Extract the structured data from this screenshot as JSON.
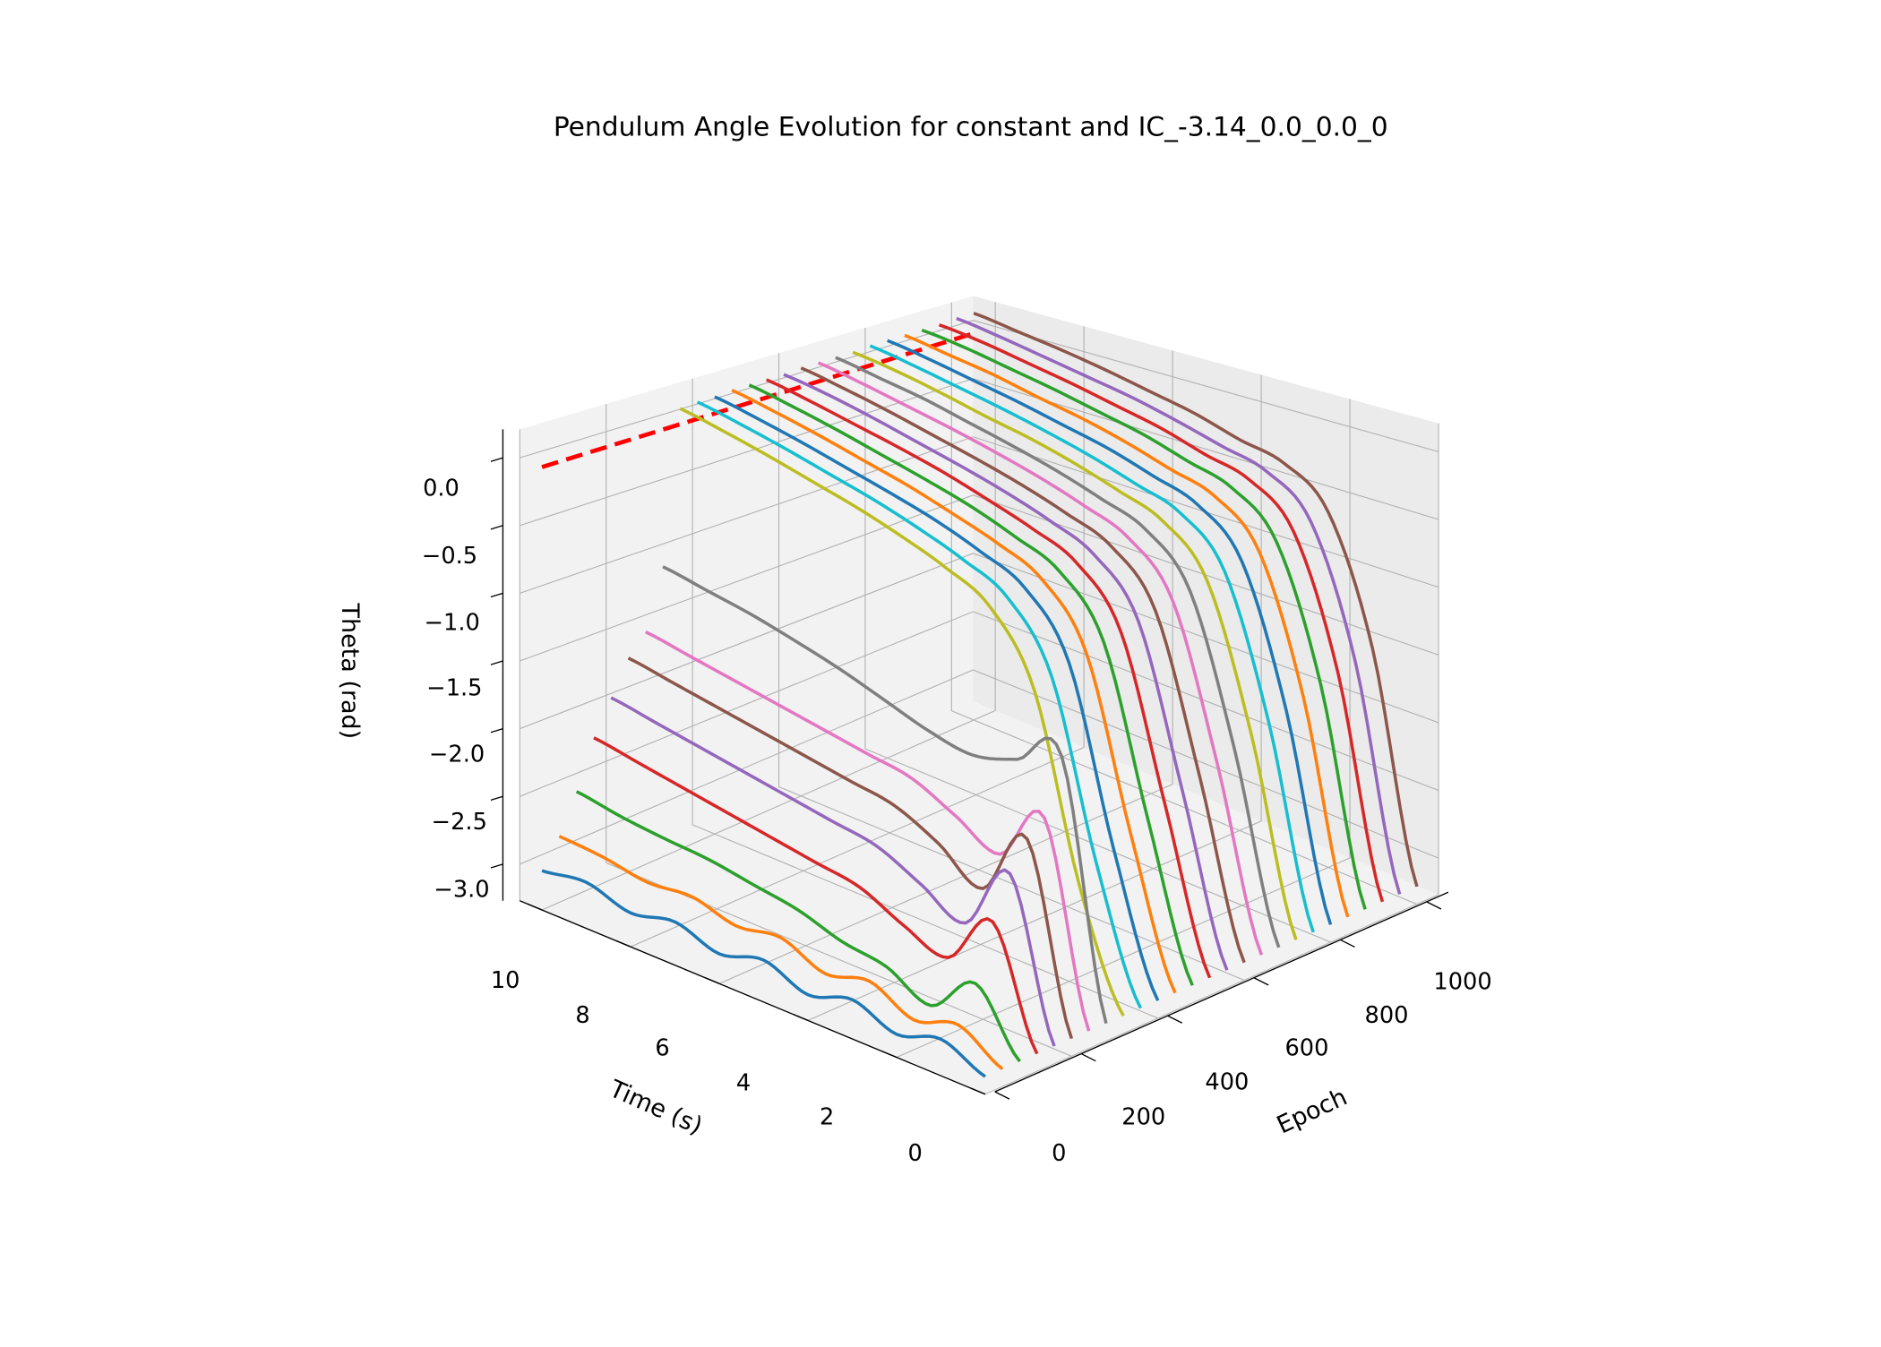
{
  "chart_data": {
    "type": "line",
    "projection": "3d",
    "title": "Pendulum Angle Evolution for constant and IC_-3.14_0.0_0.0_0",
    "xlabel": "Epoch",
    "ylabel": "Time (s)",
    "zlabel": "Theta (rad)",
    "xlim": [
      0,
      1050
    ],
    "ylim": [
      0,
      10.5
    ],
    "zlim": [
      -3.27,
      0.21
    ],
    "grid": true,
    "x_ticks": [
      "0",
      "200",
      "400",
      "600",
      "800",
      "1000"
    ],
    "y_ticks": [
      "0",
      "2",
      "4",
      "6",
      "8",
      "10"
    ],
    "z_ticks": [
      "−3.0",
      "−2.5",
      "−2.0",
      "−1.5",
      "−1.0",
      "−0.5",
      "0.0"
    ],
    "time_samples": [
      0,
      1,
      2,
      3,
      4,
      5,
      6,
      7,
      8,
      9,
      10
    ],
    "target": {
      "theta": 0.0,
      "time": 10,
      "color": "#ff0000",
      "style": "dashed"
    },
    "colors": [
      "#1f77b4",
      "#ff7f0e",
      "#2ca02c",
      "#d62728",
      "#9467bd",
      "#8c564b",
      "#e377c2",
      "#7f7f7f",
      "#bcbd22",
      "#17becf"
    ],
    "series": [
      {
        "epoch": 0,
        "theta": [
          -3.14,
          -3.0,
          -3.1,
          -2.98,
          -3.08,
          -2.96,
          -3.05,
          -2.95,
          -3.02,
          -2.93,
          -2.98
        ]
      },
      {
        "epoch": 40,
        "theta": [
          -3.14,
          -2.95,
          -3.05,
          -2.9,
          -2.98,
          -2.85,
          -2.9,
          -2.82,
          -2.85,
          -2.8,
          -2.78
        ]
      },
      {
        "epoch": 80,
        "theta": [
          -3.14,
          -2.7,
          -3.0,
          -2.85,
          -2.8,
          -2.7,
          -2.65,
          -2.6,
          -2.58,
          -2.55,
          -2.5
        ]
      },
      {
        "epoch": 120,
        "theta": [
          -3.14,
          -2.3,
          -2.7,
          -2.6,
          -2.45,
          -2.4,
          -2.35,
          -2.3,
          -2.25,
          -2.2,
          -2.15
        ]
      },
      {
        "epoch": 160,
        "theta": [
          -3.14,
          -2.0,
          -2.5,
          -2.35,
          -2.2,
          -2.15,
          -2.1,
          -2.05,
          -2.0,
          -1.95,
          -1.9
        ]
      },
      {
        "epoch": 200,
        "theta": [
          -3.14,
          -1.8,
          -2.3,
          -2.1,
          -1.95,
          -1.9,
          -1.85,
          -1.8,
          -1.75,
          -1.7,
          -1.65
        ]
      },
      {
        "epoch": 240,
        "theta": [
          -3.14,
          -1.7,
          -2.1,
          -1.95,
          -1.8,
          -1.75,
          -1.7,
          -1.65,
          -1.6,
          -1.55,
          -1.5
        ]
      },
      {
        "epoch": 280,
        "theta": [
          -3.14,
          -1.3,
          -1.45,
          -1.55,
          -1.5,
          -1.4,
          -1.3,
          -1.22,
          -1.15,
          -1.1,
          -1.05
        ]
      },
      {
        "epoch": 320,
        "theta": [
          -3.14,
          -2.3,
          -1.0,
          -0.5,
          -0.33,
          -0.22,
          -0.13,
          -0.06,
          0.01,
          0.07,
          0.12
        ]
      },
      {
        "epoch": 360,
        "theta": [
          -3.14,
          -2.2,
          -0.95,
          -0.48,
          -0.32,
          -0.21,
          -0.12,
          -0.05,
          0.02,
          0.08,
          0.13
        ]
      },
      {
        "epoch": 400,
        "theta": [
          -3.14,
          -2.15,
          -0.9,
          -0.46,
          -0.31,
          -0.2,
          -0.12,
          -0.05,
          0.02,
          0.08,
          0.13
        ]
      },
      {
        "epoch": 440,
        "theta": [
          -3.14,
          -2.1,
          -0.88,
          -0.45,
          -0.3,
          -0.2,
          -0.11,
          -0.04,
          0.03,
          0.09,
          0.14
        ]
      },
      {
        "epoch": 480,
        "theta": [
          -3.14,
          -2.05,
          -0.85,
          -0.44,
          -0.3,
          -0.19,
          -0.11,
          -0.04,
          0.03,
          0.09,
          0.14
        ]
      },
      {
        "epoch": 520,
        "theta": [
          -3.14,
          -2.0,
          -0.83,
          -0.43,
          -0.29,
          -0.19,
          -0.1,
          -0.03,
          0.03,
          0.09,
          0.14
        ]
      },
      {
        "epoch": 560,
        "theta": [
          -3.14,
          -1.95,
          -0.8,
          -0.42,
          -0.28,
          -0.18,
          -0.1,
          -0.03,
          0.04,
          0.1,
          0.14
        ]
      },
      {
        "epoch": 600,
        "theta": [
          -3.14,
          -1.9,
          -0.78,
          -0.41,
          -0.28,
          -0.18,
          -0.1,
          -0.03,
          0.04,
          0.1,
          0.15
        ]
      },
      {
        "epoch": 640,
        "theta": [
          -3.14,
          -1.85,
          -0.76,
          -0.4,
          -0.27,
          -0.17,
          -0.09,
          -0.02,
          0.04,
          0.1,
          0.15
        ]
      },
      {
        "epoch": 680,
        "theta": [
          -3.14,
          -1.8,
          -0.74,
          -0.39,
          -0.27,
          -0.17,
          -0.09,
          -0.02,
          0.05,
          0.1,
          0.15
        ]
      },
      {
        "epoch": 720,
        "theta": [
          -3.14,
          -1.76,
          -0.72,
          -0.38,
          -0.26,
          -0.16,
          -0.08,
          -0.02,
          0.05,
          0.11,
          0.15
        ]
      },
      {
        "epoch": 760,
        "theta": [
          -3.14,
          -1.72,
          -0.7,
          -0.37,
          -0.26,
          -0.16,
          -0.08,
          -0.01,
          0.05,
          0.11,
          0.16
        ]
      },
      {
        "epoch": 800,
        "theta": [
          -3.14,
          -1.68,
          -0.68,
          -0.36,
          -0.25,
          -0.15,
          -0.08,
          -0.01,
          0.05,
          0.11,
          0.16
        ]
      },
      {
        "epoch": 840,
        "theta": [
          -3.14,
          -1.64,
          -0.66,
          -0.35,
          -0.25,
          -0.15,
          -0.07,
          -0.01,
          0.06,
          0.11,
          0.16
        ]
      },
      {
        "epoch": 880,
        "theta": [
          -3.14,
          -1.6,
          -0.64,
          -0.34,
          -0.24,
          -0.14,
          -0.07,
          0.0,
          0.06,
          0.12,
          0.16
        ]
      },
      {
        "epoch": 920,
        "theta": [
          -3.14,
          -1.57,
          -0.62,
          -0.33,
          -0.24,
          -0.14,
          -0.07,
          0.0,
          0.06,
          0.12,
          0.16
        ]
      },
      {
        "epoch": 960,
        "theta": [
          -3.14,
          -1.54,
          -0.6,
          -0.32,
          -0.23,
          -0.14,
          -0.06,
          0.0,
          0.06,
          0.12,
          0.17
        ]
      },
      {
        "epoch": 1000,
        "theta": [
          -3.14,
          -1.5,
          -0.58,
          -0.31,
          -0.23,
          -0.13,
          -0.06,
          0.01,
          0.07,
          0.12,
          0.17
        ]
      }
    ]
  }
}
